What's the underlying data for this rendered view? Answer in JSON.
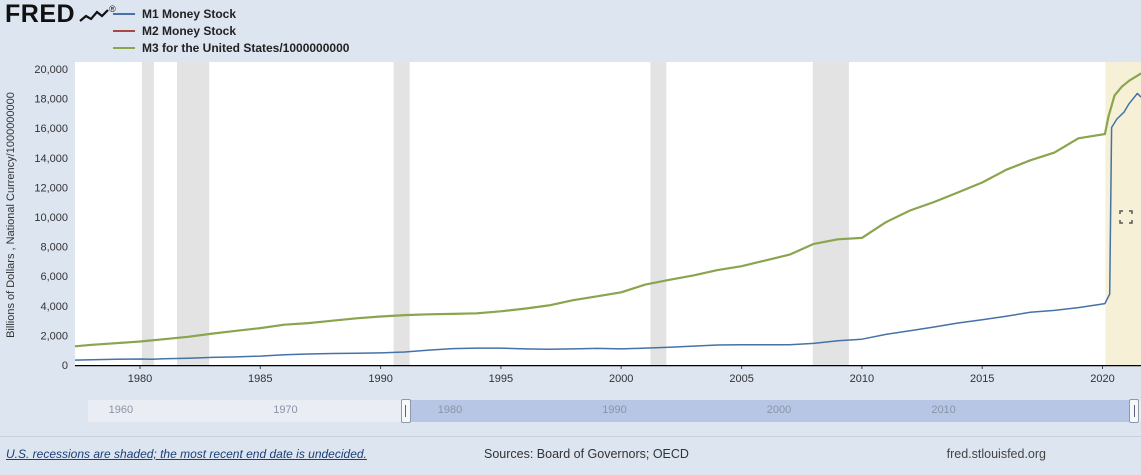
{
  "brand": {
    "logo_text": "FRED",
    "registered_mark": "®"
  },
  "legend": [
    {
      "label": "M1 Money Stock",
      "color": "#4572a7"
    },
    {
      "label": "M2 Money Stock",
      "color": "#aa4643"
    },
    {
      "label": "M3 for the United States/1000000000",
      "color": "#89a54e"
    }
  ],
  "chart_data": {
    "type": "line",
    "title": "",
    "xlabel": "",
    "ylabel": "Billions of Dollars , National Currency/1000000000",
    "xlim": [
      1977.3,
      2021.6
    ],
    "ylim": [
      0,
      20000
    ],
    "grid": false,
    "legend_position": "top-left",
    "x_ticks": [
      1980,
      1985,
      1990,
      1995,
      2000,
      2005,
      2010,
      2015,
      2020
    ],
    "y_ticks": [
      0,
      2000,
      4000,
      6000,
      8000,
      10000,
      12000,
      14000,
      16000,
      18000,
      20000
    ],
    "recession_color": "#e3e3e3",
    "undecided_color": "#f6f0d6",
    "recession_bands": [
      [
        1980.08,
        1980.58
      ],
      [
        1981.54,
        1982.88
      ],
      [
        1990.54,
        1991.21
      ],
      [
        2001.21,
        2001.87
      ],
      [
        2007.96,
        2009.46
      ]
    ],
    "undecided_band": [
      2020.12,
      2021.6
    ],
    "series": [
      {
        "id": "m1",
        "name": "M1 Money Stock",
        "color": "#4572a7",
        "stroke_width": 1.5,
        "points": [
          [
            1977.3,
            332
          ],
          [
            1978,
            355
          ],
          [
            1979,
            382
          ],
          [
            1980,
            405
          ],
          [
            1980.5,
            395
          ],
          [
            1981,
            428
          ],
          [
            1982,
            462
          ],
          [
            1983,
            515
          ],
          [
            1984,
            546
          ],
          [
            1985,
            600
          ],
          [
            1986,
            695
          ],
          [
            1987,
            745
          ],
          [
            1988,
            775
          ],
          [
            1989,
            790
          ],
          [
            1990,
            815
          ],
          [
            1991,
            880
          ],
          [
            1992,
            1005
          ],
          [
            1993,
            1105
          ],
          [
            1994,
            1145
          ],
          [
            1995,
            1140
          ],
          [
            1996,
            1090
          ],
          [
            1997,
            1065
          ],
          [
            1998,
            1090
          ],
          [
            1999,
            1120
          ],
          [
            2000,
            1085
          ],
          [
            2001,
            1140
          ],
          [
            2002,
            1200
          ],
          [
            2003,
            1280
          ],
          [
            2004,
            1350
          ],
          [
            2005,
            1370
          ],
          [
            2006,
            1365
          ],
          [
            2007,
            1370
          ],
          [
            2008,
            1460
          ],
          [
            2009,
            1645
          ],
          [
            2010,
            1745
          ],
          [
            2011,
            2065
          ],
          [
            2012,
            2320
          ],
          [
            2013,
            2565
          ],
          [
            2014,
            2835
          ],
          [
            2015,
            3060
          ],
          [
            2016,
            3300
          ],
          [
            2017,
            3560
          ],
          [
            2018,
            3690
          ],
          [
            2019,
            3880
          ],
          [
            2020.1,
            4150
          ],
          [
            2020.3,
            4800
          ],
          [
            2020.38,
            16050
          ],
          [
            2020.6,
            16620
          ],
          [
            2020.9,
            17100
          ],
          [
            2021.1,
            17650
          ],
          [
            2021.45,
            18350
          ],
          [
            2021.6,
            18100
          ]
        ]
      },
      {
        "id": "m2",
        "name": "M2 Money Stock",
        "color": "#aa4643",
        "stroke_width": 1.5,
        "points": [
          [
            1977.3,
            1265
          ],
          [
            1978,
            1365
          ],
          [
            1979,
            1475
          ],
          [
            1980,
            1590
          ],
          [
            1981,
            1745
          ],
          [
            1982,
            1905
          ],
          [
            1983,
            2120
          ],
          [
            1984,
            2310
          ],
          [
            1985,
            2495
          ],
          [
            1986,
            2725
          ],
          [
            1987,
            2830
          ],
          [
            1988,
            2990
          ],
          [
            1989,
            3155
          ],
          [
            1990,
            3275
          ],
          [
            1991,
            3375
          ],
          [
            1992,
            3425
          ],
          [
            1993,
            3455
          ],
          [
            1994,
            3490
          ],
          [
            1995,
            3630
          ],
          [
            1996,
            3810
          ],
          [
            1997,
            4030
          ],
          [
            1998,
            4380
          ],
          [
            1999,
            4640
          ],
          [
            2000,
            4915
          ],
          [
            2001,
            5430
          ],
          [
            2002,
            5760
          ],
          [
            2003,
            6055
          ],
          [
            2004,
            6410
          ],
          [
            2005,
            6675
          ],
          [
            2006,
            7065
          ],
          [
            2007,
            7460
          ],
          [
            2008,
            8180
          ],
          [
            2009,
            8490
          ],
          [
            2010,
            8590
          ],
          [
            2011,
            9650
          ],
          [
            2012,
            10440
          ],
          [
            2013,
            11015
          ],
          [
            2014,
            11660
          ],
          [
            2015,
            12330
          ],
          [
            2016,
            13190
          ],
          [
            2017,
            13830
          ],
          [
            2018,
            14350
          ],
          [
            2019,
            15320
          ],
          [
            2020.1,
            15600
          ],
          [
            2020.25,
            16800
          ],
          [
            2020.5,
            18200
          ],
          [
            2020.8,
            18800
          ],
          [
            2021.1,
            19200
          ],
          [
            2021.6,
            19700
          ]
        ]
      },
      {
        "id": "m3",
        "name": "M3 for the United States/1000000000",
        "color": "#89a54e",
        "stroke_width": 2.2,
        "points": [
          [
            1977.3,
            1265
          ],
          [
            1978,
            1365
          ],
          [
            1979,
            1475
          ],
          [
            1980,
            1590
          ],
          [
            1981,
            1745
          ],
          [
            1982,
            1905
          ],
          [
            1983,
            2120
          ],
          [
            1984,
            2310
          ],
          [
            1985,
            2495
          ],
          [
            1986,
            2725
          ],
          [
            1987,
            2830
          ],
          [
            1988,
            2990
          ],
          [
            1989,
            3155
          ],
          [
            1990,
            3275
          ],
          [
            1991,
            3375
          ],
          [
            1992,
            3425
          ],
          [
            1993,
            3455
          ],
          [
            1994,
            3490
          ],
          [
            1995,
            3630
          ],
          [
            1996,
            3810
          ],
          [
            1997,
            4030
          ],
          [
            1998,
            4380
          ],
          [
            1999,
            4640
          ],
          [
            2000,
            4915
          ],
          [
            2001,
            5430
          ],
          [
            2002,
            5760
          ],
          [
            2003,
            6055
          ],
          [
            2004,
            6410
          ],
          [
            2005,
            6675
          ],
          [
            2006,
            7065
          ],
          [
            2007,
            7460
          ],
          [
            2008,
            8180
          ],
          [
            2009,
            8490
          ],
          [
            2010,
            8590
          ],
          [
            2011,
            9650
          ],
          [
            2012,
            10440
          ],
          [
            2013,
            11015
          ],
          [
            2014,
            11660
          ],
          [
            2015,
            12330
          ],
          [
            2016,
            13190
          ],
          [
            2017,
            13830
          ],
          [
            2018,
            14350
          ],
          [
            2019,
            15320
          ],
          [
            2020.1,
            15600
          ],
          [
            2020.25,
            16800
          ],
          [
            2020.5,
            18200
          ],
          [
            2020.8,
            18800
          ],
          [
            2021.1,
            19200
          ],
          [
            2021.6,
            19700
          ]
        ]
      }
    ]
  },
  "slider": {
    "decade_labels": [
      "1960",
      "1970",
      "1980",
      "1990",
      "2000",
      "2010"
    ],
    "range_years": [
      1958,
      2022
    ],
    "selected_years": [
      1977.3,
      2021.6
    ],
    "selected_color": "#b6c6e4"
  },
  "footer": {
    "recession_note": "U.S. recessions are shaded; the most recent end date is undecided.",
    "sources": "Sources: Board of Governors; OECD",
    "site": "fred.stlouisfed.org"
  }
}
